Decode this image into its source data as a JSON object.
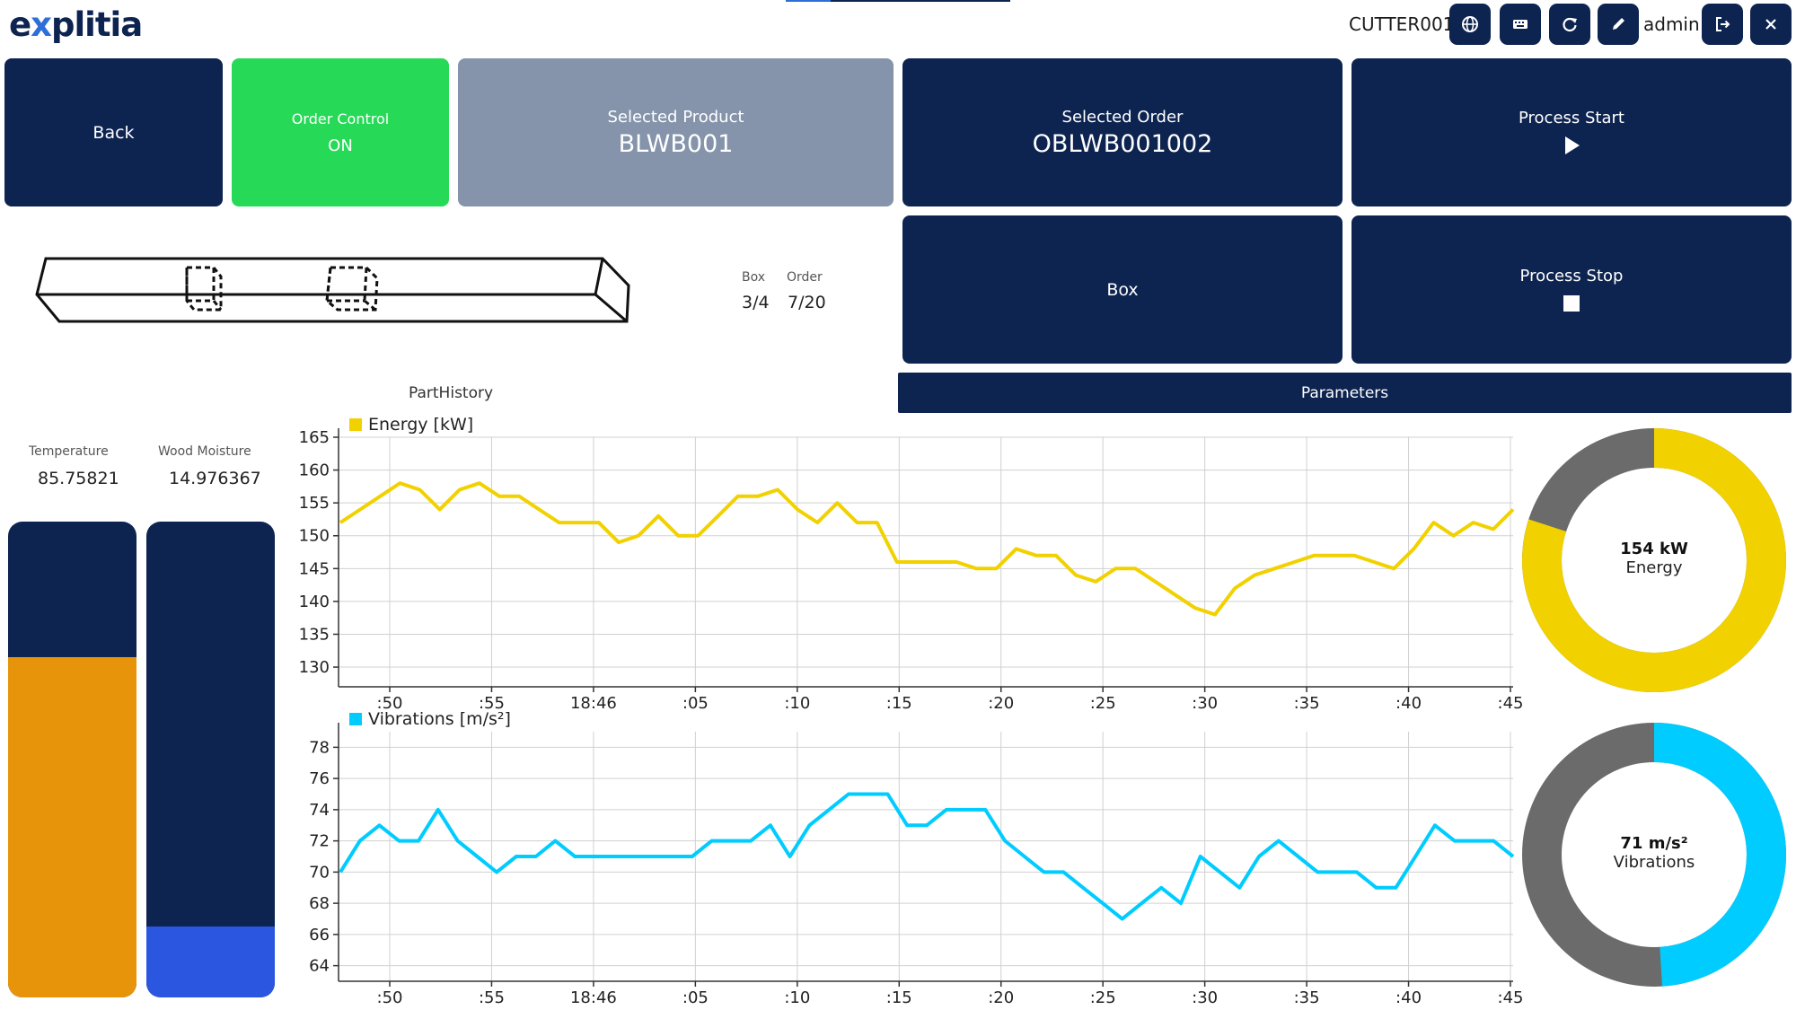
{
  "header": {
    "logo_text_pre": "e",
    "logo_text_x": "x",
    "logo_text_post": "plitia",
    "device_name": "CUTTER001",
    "user": "admin",
    "icons": [
      "globe-icon",
      "keyboard-icon",
      "refresh-icon",
      "edit-icon",
      "logout-icon",
      "close-icon"
    ]
  },
  "tiles": {
    "back": "Back",
    "order_control_label": "Order Control",
    "order_control_state": "ON",
    "selected_product_label": "Selected Product",
    "selected_product_value": "BLWB001",
    "selected_order_label": "Selected Order",
    "selected_order_value": "OBLWB001002",
    "process_start": "Process Start",
    "box": "Box",
    "process_stop": "Process Stop",
    "parameters": "Parameters"
  },
  "counters": {
    "box_label": "Box",
    "box_value": "3/4",
    "order_label": "Order",
    "order_value": "7/20"
  },
  "part_history_label": "PartHistory",
  "sensors": {
    "temperature_label": "Temperature",
    "temperature_value": "85.75821",
    "moisture_label": "Wood Moisture",
    "moisture_value": "14.976367",
    "temperature_fill_fraction": 0.715,
    "moisture_fill_fraction": 0.15
  },
  "colors": {
    "navy": "#0d2350",
    "green": "#26d957",
    "grey_tile": "#8594ab",
    "energy": "#f2d100",
    "vibration": "#00ccff",
    "temperature": "#e8940a",
    "moisture": "#2a56e0",
    "donut_rest": "#6b6b6b"
  },
  "chart_data": [
    {
      "type": "line",
      "series": [
        {
          "name": "Energy [kW]",
          "values": [
            152,
            154,
            156,
            158,
            157,
            154,
            157,
            158,
            156,
            156,
            154,
            152,
            152,
            152,
            149,
            150,
            153,
            150,
            150,
            153,
            156,
            156,
            157,
            154,
            152,
            155,
            152,
            152,
            146,
            146,
            146,
            146,
            145,
            145,
            148,
            147,
            147,
            144,
            143,
            145,
            145,
            143,
            141,
            139,
            138,
            142,
            144,
            145,
            146,
            147,
            147,
            147,
            146,
            145,
            148,
            152,
            150,
            152,
            151,
            154
          ]
        }
      ],
      "x_ticks": [
        ":50",
        ":55",
        "18:46",
        ":05",
        ":10",
        ":15",
        ":20",
        ":25",
        ":30",
        ":35",
        ":40",
        ":45"
      ],
      "y_ticks": [
        130,
        135,
        140,
        145,
        150,
        155,
        160,
        165
      ],
      "ylim": [
        127,
        165
      ],
      "grid": true,
      "legend": "top-left"
    },
    {
      "type": "line",
      "series": [
        {
          "name": "Vibrations [m/s²]",
          "values": [
            70,
            72,
            73,
            72,
            72,
            74,
            72,
            71,
            70,
            71,
            71,
            72,
            71,
            71,
            71,
            71,
            71,
            71,
            71,
            72,
            72,
            72,
            73,
            71,
            73,
            74,
            75,
            75,
            75,
            73,
            73,
            74,
            74,
            74,
            72,
            71,
            70,
            70,
            69,
            68,
            67,
            68,
            69,
            68,
            71,
            70,
            69,
            71,
            72,
            71,
            70,
            70,
            70,
            69,
            69,
            71,
            73,
            72,
            72,
            72,
            71
          ]
        }
      ],
      "x_ticks": [
        ":50",
        ":55",
        "18:46",
        ":05",
        ":10",
        ":15",
        ":20",
        ":25",
        ":30",
        ":35",
        ":40",
        ":45"
      ],
      "y_ticks": [
        64,
        66,
        68,
        70,
        72,
        74,
        76,
        78
      ],
      "ylim": [
        63,
        79
      ],
      "grid": true,
      "legend": "top-left"
    },
    {
      "type": "pie",
      "values": [
        154
      ],
      "fraction": 0.8,
      "label_value": "154 kW",
      "label_name": "Energy"
    },
    {
      "type": "pie",
      "values": [
        71
      ],
      "fraction": 0.49,
      "label_value": "71 m/s²",
      "label_name": "Vibrations"
    }
  ]
}
